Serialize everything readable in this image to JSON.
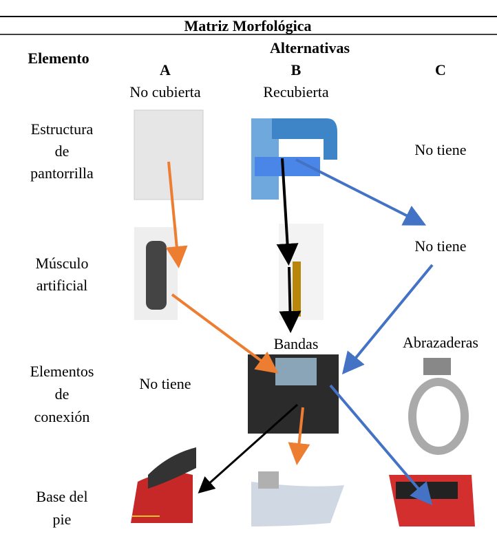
{
  "title": "Matriz Morfológica",
  "header": {
    "element": "Elemento",
    "alternatives": "Alternativas",
    "columns": [
      {
        "letter": "A",
        "name": "No cubierta"
      },
      {
        "letter": "B",
        "name": "Recubierta"
      },
      {
        "letter": "C"
      }
    ]
  },
  "rows": [
    {
      "label": [
        "Estructura",
        "de",
        "pantorrilla"
      ],
      "c": "No tiene"
    },
    {
      "label": [
        "Músculo",
        "artificial"
      ],
      "c": "No tiene"
    },
    {
      "label": [
        "Elementos",
        "de",
        "conexión"
      ],
      "a": "No tiene",
      "b": "Bandas",
      "c": "Abrazaderas"
    },
    {
      "label": [
        "Base del",
        "pie"
      ]
    }
  ]
}
